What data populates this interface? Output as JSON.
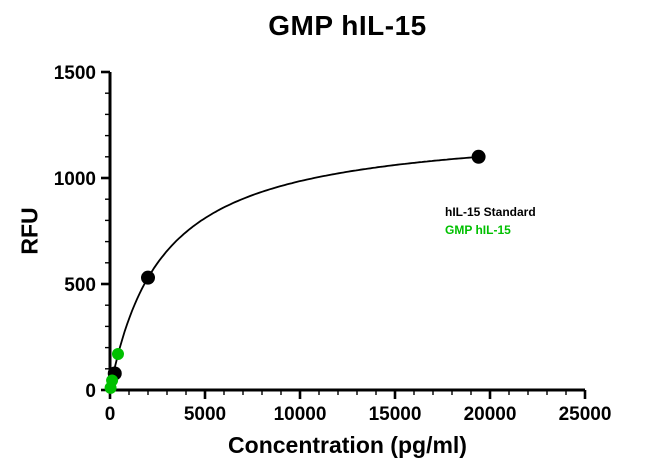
{
  "chart_data": {
    "type": "scatter",
    "title": "GMP hIL-15",
    "xlabel": "Concentration (pg/ml)",
    "ylabel": "RFU",
    "xlim": [
      0,
      25000
    ],
    "ylim": [
      0,
      1500
    ],
    "x_major_ticks": [
      0,
      5000,
      10000,
      15000,
      20000,
      25000
    ],
    "x_major_tick_labels": [
      "0",
      "5000",
      "10000",
      "15000",
      "20000",
      "25000"
    ],
    "x_minor_step": 1000,
    "y_major_ticks": [
      0,
      500,
      1000,
      1500
    ],
    "y_major_tick_labels": [
      "0",
      "500",
      "1000",
      "1500"
    ],
    "y_minor_step": 100,
    "grid": false,
    "legend_position": "right-middle",
    "axis_color": "#000000",
    "series": [
      {
        "name": "hIL-15 Standard",
        "color": "#000000",
        "marker": "circle",
        "points": [
          [
            250,
            78
          ],
          [
            2000,
            530
          ],
          [
            19400,
            1100
          ]
        ]
      },
      {
        "name": "GMP hIL-15",
        "color": "#00c000",
        "marker": "circle",
        "points": [
          [
            30,
            10
          ],
          [
            110,
            45
          ],
          [
            420,
            170
          ]
        ]
      }
    ],
    "fit_curve": {
      "model": "one-site-binding",
      "bmax": 1255,
      "kd": 2740,
      "x_start": 0,
      "x_end": 19400,
      "color": "#000000"
    }
  }
}
